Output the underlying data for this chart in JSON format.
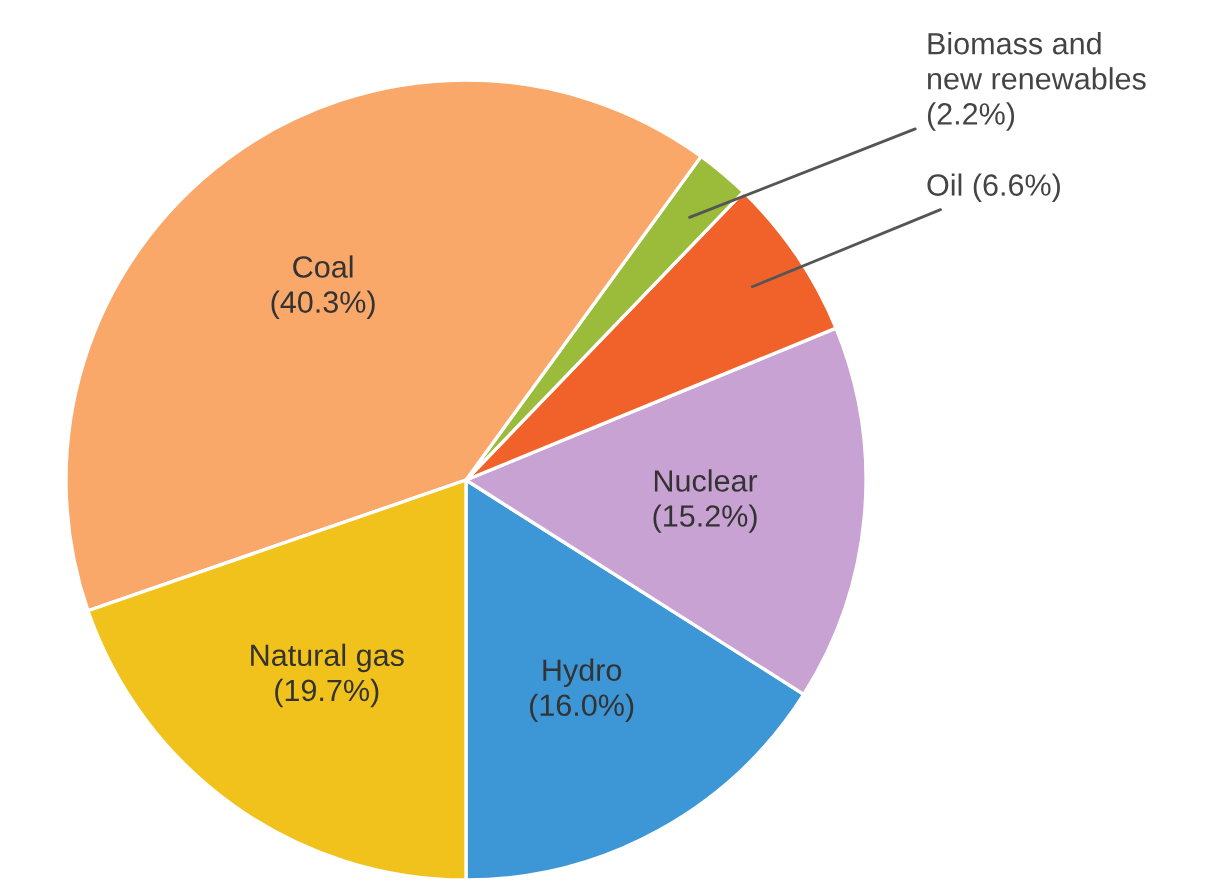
{
  "chart_data": {
    "type": "pie",
    "categories": [
      "Hydro",
      "Nuclear",
      "Oil",
      "Biomass and\nnew renewables",
      "Coal",
      "Natural gas"
    ],
    "values": [
      16.0,
      15.2,
      6.6,
      2.2,
      40.3,
      19.7
    ],
    "value_labels": [
      "(16.0%)",
      "(15.2%)",
      "(6.6%)",
      "(2.2%)",
      "(40.3%)",
      "(19.7%)"
    ],
    "colors": [
      "#3d97d6",
      "#c8a2d2",
      "#f0622a",
      "#9bbb3a",
      "#f9a86a",
      "#f1c21c"
    ]
  }
}
